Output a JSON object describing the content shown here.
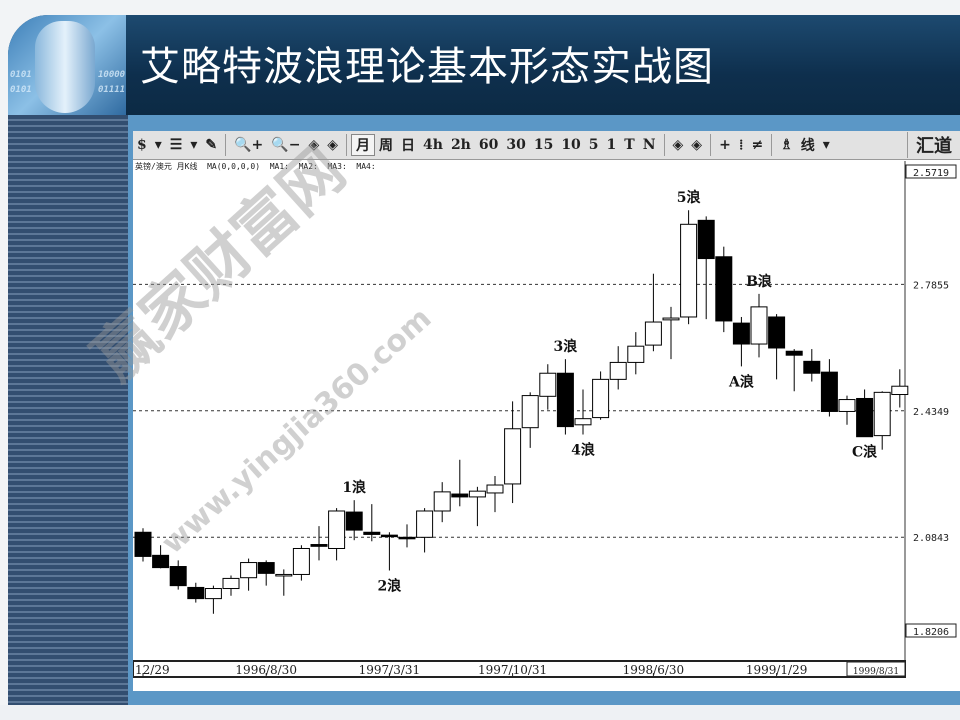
{
  "header": {
    "title": "艾略特波浪理论基本形态实战图",
    "bits": [
      "0101",
      "10000",
      "0101",
      "01111"
    ]
  },
  "watermark": {
    "cn": "赢家财富网",
    "url": "www.yingjia360.com"
  },
  "toolbar": {
    "items": [
      "$",
      "▾",
      "☰",
      "▾",
      "✎",
      "🔍+",
      "🔍−",
      "◈",
      "◈",
      "月",
      "周",
      "日",
      "4h",
      "2h",
      "60",
      "30",
      "15",
      "10",
      "5",
      "1",
      "T",
      "N",
      "◈",
      "◈",
      "+",
      "⁞",
      "≠",
      "♗",
      "线",
      "▾"
    ],
    "active": "月",
    "brand": "汇道"
  },
  "info_line": "英镑/澳元 月K线  MA(0,0,0,0)  MA1:  MA2:  MA3:  MA4:",
  "colors": {
    "header": "#0e2f4d",
    "panel": "#5b97c6",
    "bull": "#ffffff",
    "bear": "#000000"
  },
  "chart_data": {
    "type": "candlestick",
    "ylim": [
      1.741,
      3.122
    ],
    "price_labels": [
      "2.5719",
      "2.7855",
      "2.4349",
      "2.0843",
      "1.8206"
    ],
    "gridlines": [
      2.7855,
      2.4349,
      2.0843
    ],
    "x_labels": [
      {
        "index": 0,
        "text": "12/29"
      },
      {
        "index": 7,
        "text": "1996/8/30"
      },
      {
        "index": 14,
        "text": "1997/3/31"
      },
      {
        "index": 21,
        "text": "1997/10/31"
      },
      {
        "index": 29,
        "text": "1998/6/30"
      },
      {
        "index": 36,
        "text": "1999/1/29"
      },
      {
        "index": 43,
        "text": "1999/8/31"
      }
    ],
    "candles": [
      [
        2.098,
        2.109,
        2.017,
        2.031
      ],
      [
        2.034,
        2.062,
        1.998,
        2.0
      ],
      [
        2.003,
        2.02,
        1.939,
        1.95
      ],
      [
        1.945,
        1.958,
        1.903,
        1.914
      ],
      [
        1.914,
        1.95,
        1.872,
        1.942
      ],
      [
        1.942,
        1.978,
        1.922,
        1.97
      ],
      [
        1.972,
        2.025,
        1.936,
        2.014
      ],
      [
        2.014,
        2.02,
        1.95,
        1.984
      ],
      [
        1.978,
        1.995,
        1.922,
        1.981
      ],
      [
        1.981,
        2.062,
        1.964,
        2.053
      ],
      [
        2.064,
        2.115,
        2.02,
        2.059
      ],
      [
        2.053,
        2.165,
        2.02,
        2.157
      ],
      [
        2.154,
        2.187,
        2.076,
        2.104
      ],
      [
        2.098,
        2.176,
        2.073,
        2.092
      ],
      [
        2.09,
        2.098,
        1.992,
        2.087
      ],
      [
        2.084,
        2.12,
        2.056,
        2.081
      ],
      [
        2.084,
        2.165,
        2.042,
        2.157
      ],
      [
        2.157,
        2.237,
        2.126,
        2.21
      ],
      [
        2.204,
        2.299,
        2.17,
        2.196
      ],
      [
        2.196,
        2.224,
        2.115,
        2.212
      ],
      [
        2.207,
        2.254,
        2.154,
        2.229
      ],
      [
        2.232,
        2.461,
        2.179,
        2.385
      ],
      [
        2.388,
        2.486,
        2.332,
        2.477
      ],
      [
        2.475,
        2.564,
        2.438,
        2.539
      ],
      [
        2.539,
        2.578,
        2.369,
        2.391
      ],
      [
        2.396,
        2.494,
        2.369,
        2.413
      ],
      [
        2.416,
        2.544,
        2.41,
        2.522
      ],
      [
        2.522,
        2.614,
        2.494,
        2.569
      ],
      [
        2.569,
        2.653,
        2.536,
        2.614
      ],
      [
        2.617,
        2.815,
        2.6,
        2.681
      ],
      [
        2.687,
        2.723,
        2.578,
        2.692
      ],
      [
        2.695,
        2.991,
        2.675,
        2.952
      ],
      [
        2.963,
        2.974,
        2.689,
        2.857
      ],
      [
        2.862,
        2.89,
        2.653,
        2.684
      ],
      [
        2.678,
        2.695,
        2.558,
        2.62
      ],
      [
        2.62,
        2.759,
        2.583,
        2.723
      ],
      [
        2.695,
        2.703,
        2.522,
        2.609
      ],
      [
        2.6,
        2.606,
        2.489,
        2.589
      ],
      [
        2.572,
        2.606,
        2.516,
        2.539
      ],
      [
        2.542,
        2.578,
        2.419,
        2.433
      ],
      [
        2.433,
        2.477,
        2.396,
        2.466
      ],
      [
        2.469,
        2.494,
        2.363,
        2.363
      ],
      [
        2.366,
        2.489,
        2.327,
        2.486
      ],
      [
        2.48,
        2.55,
        2.444,
        2.503
      ]
    ],
    "candle_fields": [
      "open",
      "high",
      "low",
      "close"
    ],
    "annotations": [
      {
        "index": 12,
        "text": "1浪",
        "pos": "above"
      },
      {
        "index": 14,
        "text": "2浪",
        "pos": "below"
      },
      {
        "index": 24,
        "text": "3浪",
        "pos": "above"
      },
      {
        "index": 25,
        "text": "4浪",
        "pos": "below"
      },
      {
        "index": 31,
        "text": "5浪",
        "pos": "above"
      },
      {
        "index": 34,
        "text": "A浪",
        "pos": "below"
      },
      {
        "index": 35,
        "text": "B浪",
        "pos": "above"
      },
      {
        "index": 41,
        "text": "C浪",
        "pos": "below"
      }
    ]
  }
}
